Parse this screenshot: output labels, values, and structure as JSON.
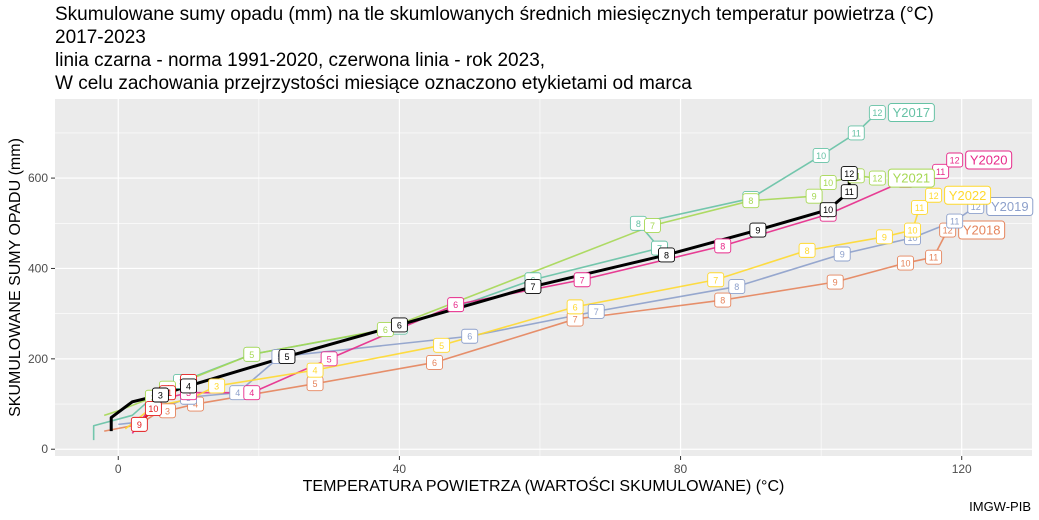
{
  "title_lines": [
    "Skumulowane sumy opadu (mm) na tle skumlowanych średnich miesięcznych temperatur powietrza (°C)",
    "2017-2023",
    "linia czarna - norma 1991-2020, czerwona linia - rok 2023,",
    "W celu zachowania przejrzystości miesiące oznaczono etykietami od marca"
  ],
  "credit": "IMGW-PIB",
  "chart_data": {
    "type": "line",
    "xlabel": "TEMPERATURA POWIETRZA (WARTOŚCI SKUMULOWANE) (°C)",
    "ylabel": "SKUMULOWANE SUMY OPADU (mm)",
    "xlim": [
      -9,
      130
    ],
    "ylim": [
      -15,
      775
    ],
    "x_ticks": [
      0,
      40,
      80,
      120
    ],
    "y_ticks": [
      0,
      200,
      400,
      600
    ],
    "grid": true,
    "label_from_month": 3,
    "series": [
      {
        "name": "Y2017",
        "color": "#66c2a5",
        "end_label": "Y2017",
        "points": [
          [
            -3.5,
            20
          ],
          [
            -3.5,
            52
          ],
          [
            2,
            75
          ],
          [
            6,
            130
          ],
          [
            9,
            150
          ],
          [
            19,
            210
          ],
          [
            40,
            270
          ],
          [
            59,
            375
          ],
          [
            77,
            445
          ],
          [
            74,
            500
          ],
          [
            90,
            555
          ],
          [
            100,
            650
          ],
          [
            105,
            700
          ],
          [
            108,
            745
          ]
        ]
      },
      {
        "name": "Y2018",
        "color": "#e5845c",
        "end_label": "Y2018",
        "points": [
          [
            -2,
            40
          ],
          [
            3,
            55
          ],
          [
            5,
            75
          ],
          [
            7,
            85
          ],
          [
            11,
            100
          ],
          [
            28,
            145
          ],
          [
            45,
            192
          ],
          [
            65,
            288
          ],
          [
            86,
            330
          ],
          [
            102,
            370
          ],
          [
            112,
            412
          ],
          [
            116,
            425
          ],
          [
            118,
            485
          ]
        ]
      },
      {
        "name": "Y2019",
        "color": "#8da0cb",
        "end_label": "Y2019",
        "points": [
          [
            0,
            55
          ],
          [
            3,
            60
          ],
          [
            4,
            75
          ],
          [
            10,
            115
          ],
          [
            17,
            125
          ],
          [
            23,
            205
          ],
          [
            50,
            250
          ],
          [
            68,
            305
          ],
          [
            88,
            360
          ],
          [
            103,
            432
          ],
          [
            113,
            468
          ],
          [
            119,
            505
          ],
          [
            122,
            537
          ]
        ]
      },
      {
        "name": "Y2020",
        "color": "#e7298a",
        "end_label": "Y2020",
        "points": [
          [
            2,
            35
          ],
          [
            4,
            80
          ],
          [
            6,
            110
          ],
          [
            10,
            125
          ],
          [
            19,
            125
          ],
          [
            30,
            200
          ],
          [
            48,
            320
          ],
          [
            66,
            375
          ],
          [
            86,
            450
          ],
          [
            101,
            520
          ],
          [
            112,
            595
          ],
          [
            117,
            615
          ],
          [
            119,
            640
          ]
        ]
      },
      {
        "name": "Y2021",
        "color": "#a6d854",
        "end_label": "Y2021",
        "points": [
          [
            -2,
            75
          ],
          [
            0,
            85
          ],
          [
            5,
            115
          ],
          [
            7,
            135
          ],
          [
            19,
            210
          ],
          [
            38,
            265
          ],
          [
            76,
            495
          ],
          [
            90,
            550
          ],
          [
            99,
            560
          ],
          [
            101,
            590
          ],
          [
            105,
            605
          ],
          [
            108,
            600
          ]
        ]
      },
      {
        "name": "Y2022",
        "color": "#ffd92f",
        "end_label": "Y2022",
        "points": [
          [
            1,
            45
          ],
          [
            5,
            95
          ],
          [
            10,
            110
          ],
          [
            14,
            140
          ],
          [
            28,
            175
          ],
          [
            46,
            230
          ],
          [
            65,
            315
          ],
          [
            85,
            375
          ],
          [
            98,
            440
          ],
          [
            109,
            470
          ],
          [
            113,
            485
          ],
          [
            114,
            535
          ],
          [
            116,
            562
          ]
        ]
      },
      {
        "name": "2023",
        "color": "#e41a1c",
        "highlight": true,
        "end_label": "",
        "points": [
          [
            3,
            55
          ],
          [
            5,
            90
          ],
          [
            7,
            125
          ],
          [
            10,
            150
          ]
        ]
      },
      {
        "name": "norma 1991-2020",
        "color": "#000000",
        "highlight": true,
        "end_label": "",
        "points": [
          [
            -1,
            40
          ],
          [
            -1,
            70
          ],
          [
            2,
            105
          ],
          [
            6,
            120
          ],
          [
            10,
            140
          ],
          [
            24,
            205
          ],
          [
            40,
            275
          ],
          [
            59,
            360
          ],
          [
            78,
            430
          ],
          [
            91,
            485
          ],
          [
            101,
            530
          ],
          [
            104,
            570
          ],
          [
            104,
            610
          ]
        ]
      }
    ]
  }
}
